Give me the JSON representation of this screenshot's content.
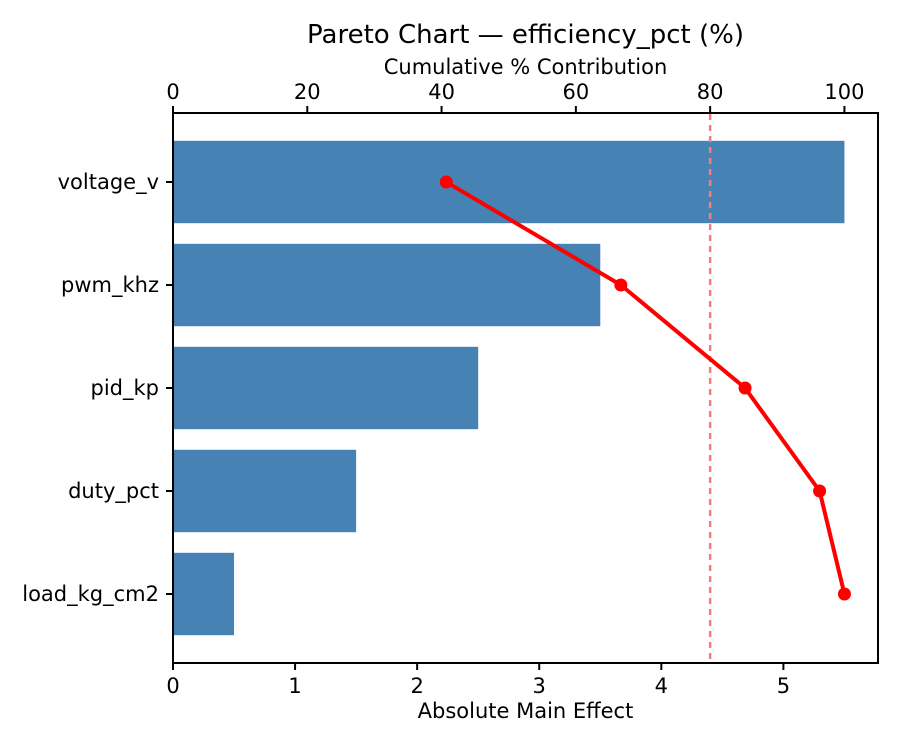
{
  "chart_data": {
    "type": "bar",
    "subtype": "pareto-horizontal-bar-with-cumulative-line",
    "title": "Pareto Chart — efficiency_pct (%)",
    "categories": [
      "voltage_v",
      "pwm_khz",
      "pid_kp",
      "duty_pct",
      "load_kg_cm2"
    ],
    "series": [
      {
        "name": "Absolute Main Effect",
        "type": "bar",
        "orientation": "horizontal",
        "values": [
          5.5,
          3.5,
          2.5,
          1.5,
          0.5
        ]
      },
      {
        "name": "Cumulative % Contribution",
        "type": "line",
        "marker": "circle",
        "values": [
          40.7,
          66.7,
          85.2,
          96.3,
          100.0
        ]
      }
    ],
    "x_bottom_axis": {
      "label": "Absolute Main Effect",
      "ticks": [
        0,
        1,
        2,
        3,
        4,
        5
      ],
      "range": [
        0,
        5.775
      ]
    },
    "x_top_axis": {
      "label": "Cumulative % Contribution",
      "ticks": [
        0,
        20,
        40,
        60,
        80,
        100
      ],
      "range": [
        0,
        105
      ]
    },
    "reference_line": {
      "value": 80,
      "axis": "top",
      "style": "dashed",
      "meaning": "80% cumulative contribution threshold"
    },
    "colors": {
      "bar": "#4682B4",
      "line": "#FF0000",
      "marker": "#FF0000",
      "reference": "#F97C7C",
      "spine": "#000000",
      "text": "#000000",
      "background": "#FFFFFF"
    },
    "grid": false,
    "legend": false,
    "ylim_note": "categories top-to-bottom in descending bar value"
  }
}
